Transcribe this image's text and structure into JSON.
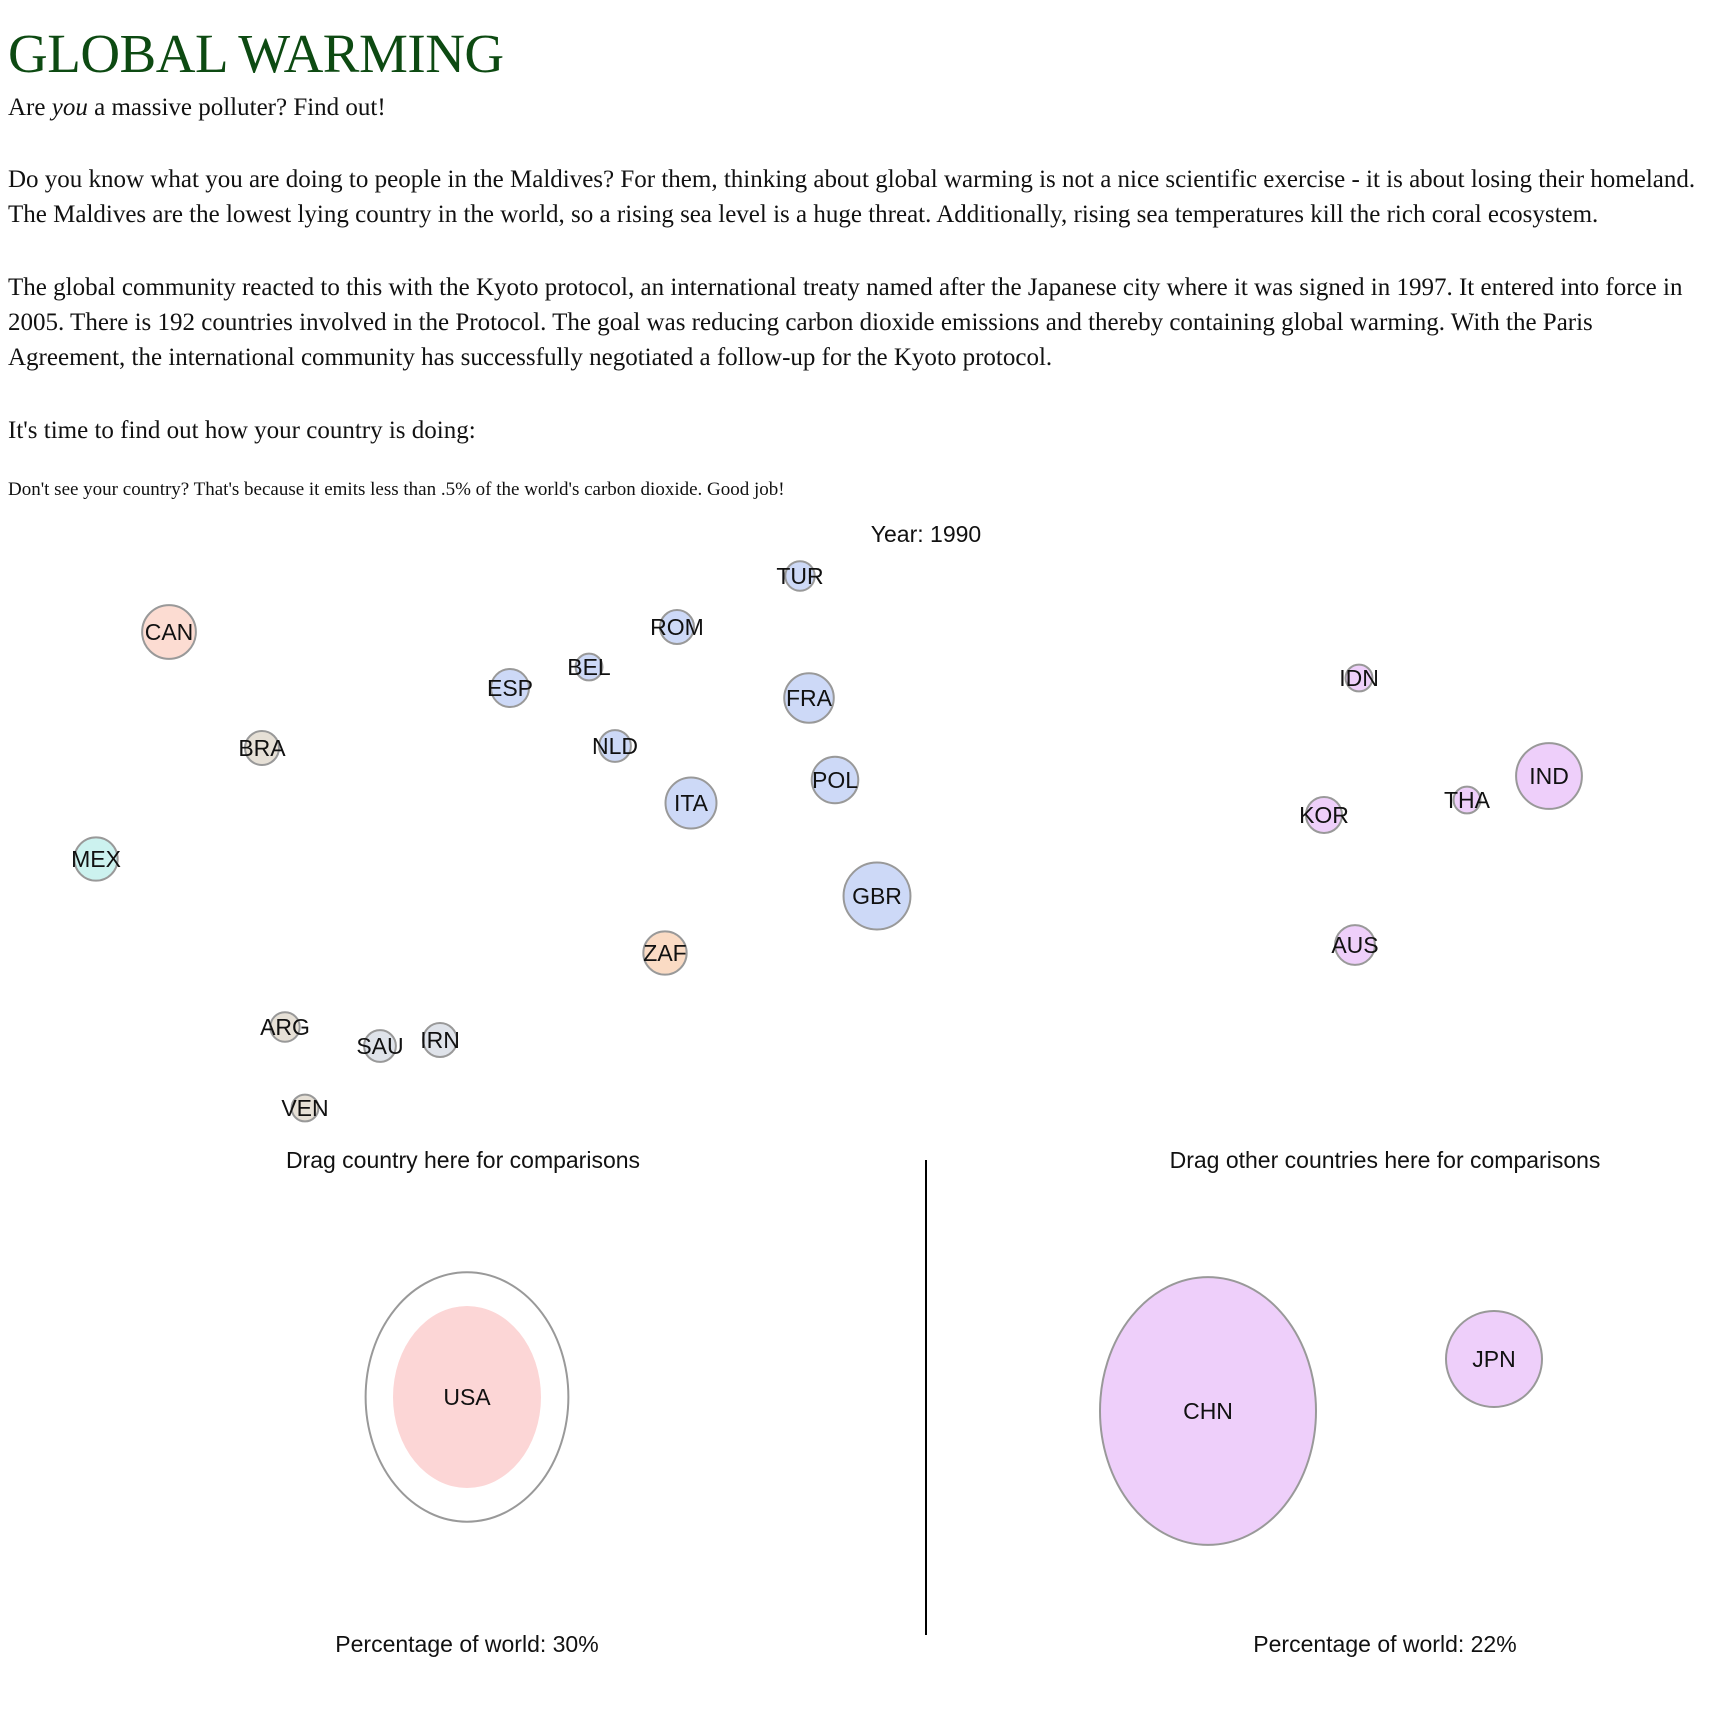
{
  "header": {
    "title": "GLOBAL WARMING",
    "tagline_before": "Are ",
    "tagline_emph": "you",
    "tagline_after": " a massive polluter? Find out!",
    "paragraphs": [
      "Do you know what you are doing to people in the Maldives? For them, thinking about global warming is not a nice scientific exercise - it is about losing their homeland. The Maldives are the lowest lying country in the world, so a rising sea level is a huge threat. Additionally, rising sea temperatures kill the rich coral ecosystem.",
      "The global community reacted to this with the Kyoto protocol, an international treaty named after the Japanese city where it was signed in 1997. It entered into force in 2005. There is 192 countries involved in the Protocol. The goal was reducing carbon dioxide emissions and thereby containing global warming. With the Paris Agreement, the international community has successfully negotiated a follow-up for the Kyoto protocol.",
      "It's time to find out how your country is doing:"
    ],
    "note": "Don't see your country? That's because it emits less than .5% of the world's carbon dioxide. Good job!"
  },
  "colors": {
    "title": "#0d4a12",
    "north_america": "#fcd6d6",
    "canada": "#fcdcd2",
    "mexico": "#ccf2ef",
    "south_america": "#e6e0d6",
    "europe": "#cdd9f7",
    "africa": "#fadbc4",
    "asia": "#eecffa",
    "middle_east": "#dfe3ea",
    "stroke": "#999999"
  },
  "chart_data": {
    "type": "bubble",
    "year_label": "Year: 1990",
    "drop_zone_left_label": "Drag country here for comparisons",
    "drop_zone_right_label": "Drag other countries here for comparisons",
    "left_percentage_label": "Percentage of world: 30%",
    "right_percentage_label": "Percentage of world: 22%",
    "countries": [
      {
        "code": "TUR",
        "group": "europe",
        "size": 0.6
      },
      {
        "code": "ROM",
        "group": "europe",
        "size": 0.8
      },
      {
        "code": "BEL",
        "group": "europe",
        "size": 0.5
      },
      {
        "code": "ESP",
        "group": "europe",
        "size": 1.0
      },
      {
        "code": "FRA",
        "group": "europe",
        "size": 1.7
      },
      {
        "code": "NLD",
        "group": "europe",
        "size": 0.7
      },
      {
        "code": "POL",
        "group": "europe",
        "size": 1.5
      },
      {
        "code": "ITA",
        "group": "europe",
        "size": 1.8
      },
      {
        "code": "GBR",
        "group": "europe",
        "size": 3.1
      },
      {
        "code": "CAN",
        "group": "canada",
        "size": 2.0
      },
      {
        "code": "BRA",
        "group": "south_america",
        "size": 0.8
      },
      {
        "code": "MEX",
        "group": "mexico",
        "size": 1.3
      },
      {
        "code": "ZAF",
        "group": "africa",
        "size": 1.3
      },
      {
        "code": "ARG",
        "group": "south_america",
        "size": 0.6
      },
      {
        "code": "SAU",
        "group": "middle_east",
        "size": 0.7
      },
      {
        "code": "IRN",
        "group": "middle_east",
        "size": 0.8
      },
      {
        "code": "VEN",
        "group": "south_america",
        "size": 0.5
      },
      {
        "code": "IDN",
        "group": "asia",
        "size": 0.5
      },
      {
        "code": "IND",
        "group": "asia",
        "size": 3.0
      },
      {
        "code": "THA",
        "group": "asia",
        "size": 0.5
      },
      {
        "code": "KOR",
        "group": "asia",
        "size": 0.9
      },
      {
        "code": "AUS",
        "group": "asia",
        "size": 1.1
      }
    ],
    "comparison_left": [
      {
        "code": "USA",
        "group": "north_america",
        "size": 30
      }
    ],
    "comparison_right": [
      {
        "code": "CHN",
        "group": "asia",
        "size": 16
      },
      {
        "code": "JPN",
        "group": "asia",
        "size": 6
      }
    ]
  }
}
